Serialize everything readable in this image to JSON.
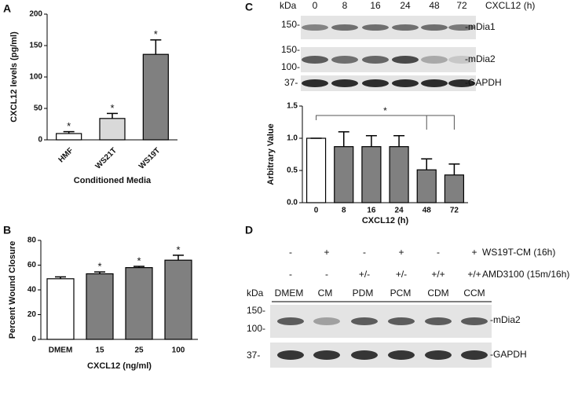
{
  "panels": [
    "A",
    "B",
    "C",
    "D"
  ],
  "chart_data": [
    {
      "type": "bar",
      "ylabel": "CXCL12 levels (pg/ml)",
      "xlabel": "Conditioned Media",
      "categories": [
        "HMF",
        "WS21T",
        "WS19T"
      ],
      "values": [
        10,
        34,
        136
      ],
      "errors": [
        3,
        8,
        23
      ],
      "colors": [
        "#ffffff",
        "#d9d9d9",
        "#808080"
      ],
      "annotations": [
        "*",
        "*",
        "*"
      ],
      "ylim": [
        0,
        200
      ],
      "yticks": [
        0,
        50,
        100,
        150,
        200
      ],
      "xtick_rotation": 45
    },
    {
      "type": "bar",
      "ylabel": "Percent Wound  Closure",
      "xlabel": "CXCL12 (ng/ml)",
      "categories": [
        "DMEM",
        "15",
        "25",
        "100"
      ],
      "values": [
        49,
        53,
        58,
        64
      ],
      "errors": [
        1.5,
        1.5,
        1,
        4
      ],
      "colors": [
        "#ffffff",
        "#808080",
        "#808080",
        "#808080"
      ],
      "annotations": [
        null,
        "*",
        "*",
        "*"
      ],
      "ylim": [
        0,
        80
      ],
      "yticks": [
        0,
        20,
        40,
        60,
        80
      ],
      "xtick_rotation": 0
    },
    {
      "type": "bar",
      "ylabel": "Arbitrary Value",
      "xlabel": "CXCL12 (h)",
      "categories": [
        "0",
        "8",
        "16",
        "24",
        "48",
        "72"
      ],
      "values": [
        1.0,
        0.87,
        0.87,
        0.87,
        0.51,
        0.43
      ],
      "errors": [
        0,
        0.23,
        0.17,
        0.17,
        0.17,
        0.17
      ],
      "colors": [
        "#ffffff",
        "#808080",
        "#808080",
        "#808080",
        "#808080",
        "#808080"
      ],
      "significance": "*",
      "ylim": [
        0,
        1.5
      ],
      "yticks": [
        {
          "value": 0,
          "label": "0.0"
        },
        {
          "value": 0.5,
          "label": "0.5"
        },
        {
          "value": 1,
          "label": "1.0"
        },
        {
          "value": 1.5,
          "label": "1.5"
        }
      ],
      "xtick_rotation": 0
    }
  ],
  "blot_c": {
    "kda": "kDa",
    "lanes": [
      "0",
      "8",
      "16",
      "24",
      "48",
      "72"
    ],
    "lane_title": "CXCL12 (h)",
    "markers": [
      "150-",
      "150-",
      "100-",
      "37-"
    ],
    "bands": [
      "-mDia1",
      "-mDia2",
      "-GAPDH"
    ]
  },
  "blot_d": {
    "treatments": [
      {
        "signs": [
          "-",
          "+",
          "-",
          "+",
          "-",
          "+"
        ],
        "label": "WS19T-CM (16h)"
      },
      {
        "signs": [
          "-",
          "-",
          "+/-",
          "+/-",
          "+/+",
          "+/+"
        ],
        "label": "AMD3100 (15m/16h)"
      }
    ],
    "kda": "kDa",
    "lanes": [
      "DMEM",
      "CM",
      "PDM",
      "PCM",
      "CDM",
      "CCM"
    ],
    "markers": [
      "150-",
      "100-",
      "37-"
    ],
    "bands": [
      "-mDia2",
      "-GAPDH"
    ]
  }
}
